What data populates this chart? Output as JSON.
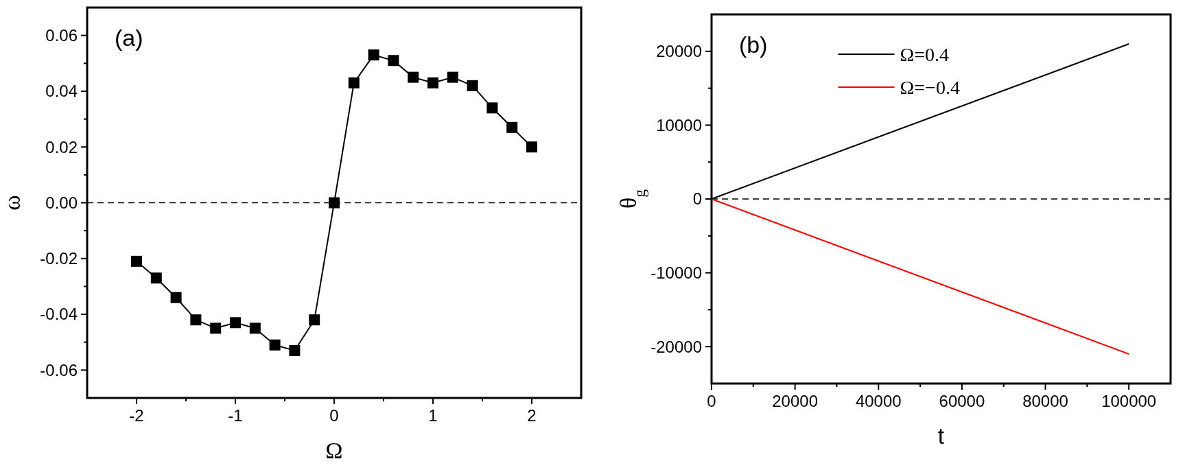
{
  "chart_data": [
    {
      "type": "line",
      "xlabel": "Ω",
      "ylabel": "ω",
      "annotations": [
        "(a)"
      ],
      "marker": "square",
      "grid": false,
      "legend": false,
      "xlim": [
        -2.5,
        2.5
      ],
      "ylim": [
        -0.07,
        0.07
      ],
      "xticks": [
        {
          "value": -2,
          "label": "-2"
        },
        {
          "value": -1.5,
          "label": null
        },
        {
          "value": -1,
          "label": "-1"
        },
        {
          "value": -0.5,
          "label": null
        },
        {
          "value": 0,
          "label": "0"
        },
        {
          "value": 0.5,
          "label": null
        },
        {
          "value": 1,
          "label": "1"
        },
        {
          "value": 1.5,
          "label": null
        },
        {
          "value": 2,
          "label": "2"
        }
      ],
      "yticks": [
        {
          "value": -0.06,
          "label": "-0.06"
        },
        {
          "value": -0.05,
          "label": null
        },
        {
          "value": -0.04,
          "label": "-0.04"
        },
        {
          "value": -0.03,
          "label": null
        },
        {
          "value": -0.02,
          "label": "-0.02"
        },
        {
          "value": -0.01,
          "label": null
        },
        {
          "value": 0,
          "label": "0.00"
        },
        {
          "value": 0.01,
          "label": null
        },
        {
          "value": 0.02,
          "label": "0.02"
        },
        {
          "value": 0.03,
          "label": null
        },
        {
          "value": 0.04,
          "label": "0.04"
        },
        {
          "value": 0.05,
          "label": null
        },
        {
          "value": 0.06,
          "label": "0.06"
        }
      ],
      "ref_lines": [
        {
          "axis": "y",
          "value": 0,
          "color": "#000000",
          "line_style": "dashed"
        }
      ],
      "series": [
        {
          "color": "#000000",
          "x": [
            -2,
            -1.8,
            -1.6,
            -1.4,
            -1.2,
            -1,
            -0.8,
            -0.6,
            -0.4,
            -0.2,
            0,
            0.2,
            0.4,
            0.6,
            0.8,
            1,
            1.2,
            1.4,
            1.6,
            1.8,
            2
          ],
          "values": [
            -0.021,
            -0.027,
            -0.034,
            -0.042,
            -0.045,
            -0.043,
            -0.045,
            -0.051,
            -0.053,
            -0.042,
            0,
            0.043,
            0.053,
            0.051,
            0.045,
            0.043,
            0.045,
            0.042,
            0.034,
            0.027,
            0.02
          ]
        }
      ]
    },
    {
      "type": "line",
      "xlabel": "t",
      "ylabel": "θ$_{g}$",
      "annotations": [
        "(b)"
      ],
      "marker": "none",
      "grid": false,
      "legend": "top",
      "xlim": [
        0,
        110000
      ],
      "ylim": [
        -25000,
        25000
      ],
      "xticks": [
        0,
        {
          "value": 10000,
          "label": null
        },
        20000,
        {
          "value": 30000,
          "label": null
        },
        40000,
        {
          "value": 50000,
          "label": null
        },
        60000,
        {
          "value": 70000,
          "label": null
        },
        80000,
        {
          "value": 90000,
          "label": null
        },
        100000
      ],
      "yticks": [
        -20000,
        {
          "value": -15000,
          "label": null
        },
        -10000,
        {
          "value": -5000,
          "label": null
        },
        0,
        {
          "value": 5000,
          "label": null
        },
        10000,
        {
          "value": 15000,
          "label": null
        },
        20000
      ],
      "ref_lines": [
        {
          "axis": "y",
          "value": 0,
          "color": "#000000",
          "line_style": "dashed"
        }
      ],
      "series": [
        {
          "name": "Ω=0.4",
          "color": "#000000",
          "x": [
            0,
            100000
          ],
          "values": [
            0,
            21000
          ]
        },
        {
          "name": "Ω=−0.4",
          "color": "#ff0000",
          "x": [
            0,
            100000
          ],
          "values": [
            0,
            -21000
          ]
        }
      ]
    }
  ]
}
